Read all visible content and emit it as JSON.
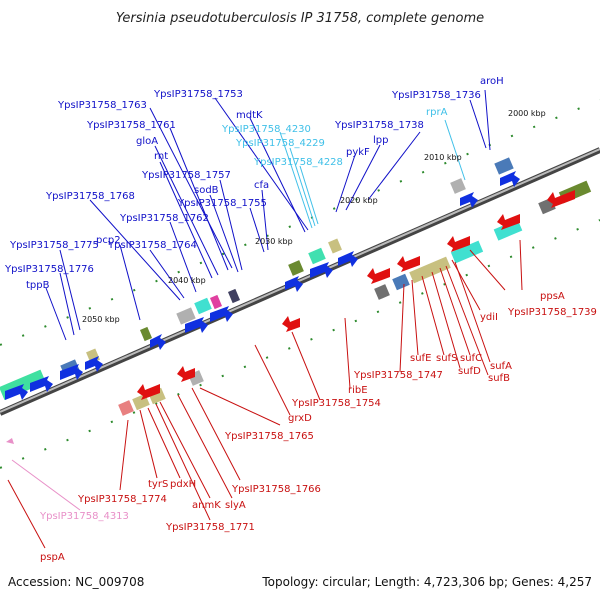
{
  "title": "Yersinia pseudotuberculosis IP 31758, complete genome",
  "footer": {
    "accession": "Accession: NC_009708",
    "summary": "Topology: circular; Length: 4,723,306 bp; Genes: 4,257"
  },
  "colors": {
    "forward_label": "#1010c8",
    "reverse_label": "#c81010",
    "rna_label": "#40c0e8",
    "pseudo_label": "#e890c8",
    "backbone": "#777777",
    "forward_gene": "#1030e0",
    "reverse_gene": "#e01010",
    "tick_mark": "#2e8b2e"
  },
  "ticks": [
    "2000 kbp",
    "2010 kbp",
    "2020 kbp",
    "2030 kbp",
    "2040 kbp",
    "2050 kbp"
  ],
  "labels": {
    "forward": [
      "aroH",
      "YpsIP31758_1736",
      "YpsIP31758_1738",
      "lpp",
      "pykF",
      "YpsIP31758_1753",
      "mdtK",
      "YpsIP31758_1763",
      "YpsIP31758_1761",
      "gloA",
      "rnt",
      "YpsIP31758_1757",
      "sodB",
      "cfa",
      "YpsIP31758_1755",
      "YpsIP31758_1768",
      "YpsIP31758_1762",
      "YpsIP31758_1764",
      "YpsIP31758_1775",
      "pcp2",
      "YpsIP31758_1776",
      "tppB"
    ],
    "rna": [
      "rprA",
      "YpsIP31758_4230",
      "YpsIP31758_4229",
      "YpsIP31758_4228"
    ],
    "reverse": [
      "ppsA",
      "YpsIP31758_1739",
      "ydiI",
      "sufA",
      "sufB",
      "sufC",
      "sufD",
      "sufS",
      "sufE",
      "YpsIP31758_1747",
      "ribE",
      "YpsIP31758_1754",
      "grxD",
      "YpsIP31758_1765",
      "YpsIP31758_1766",
      "slyA",
      "anmK",
      "YpsIP31758_1771",
      "pdxH",
      "tyrS",
      "YpsIP31758_1774",
      "pspA"
    ],
    "pseudo": [
      "YpsIP31758_4313"
    ]
  }
}
